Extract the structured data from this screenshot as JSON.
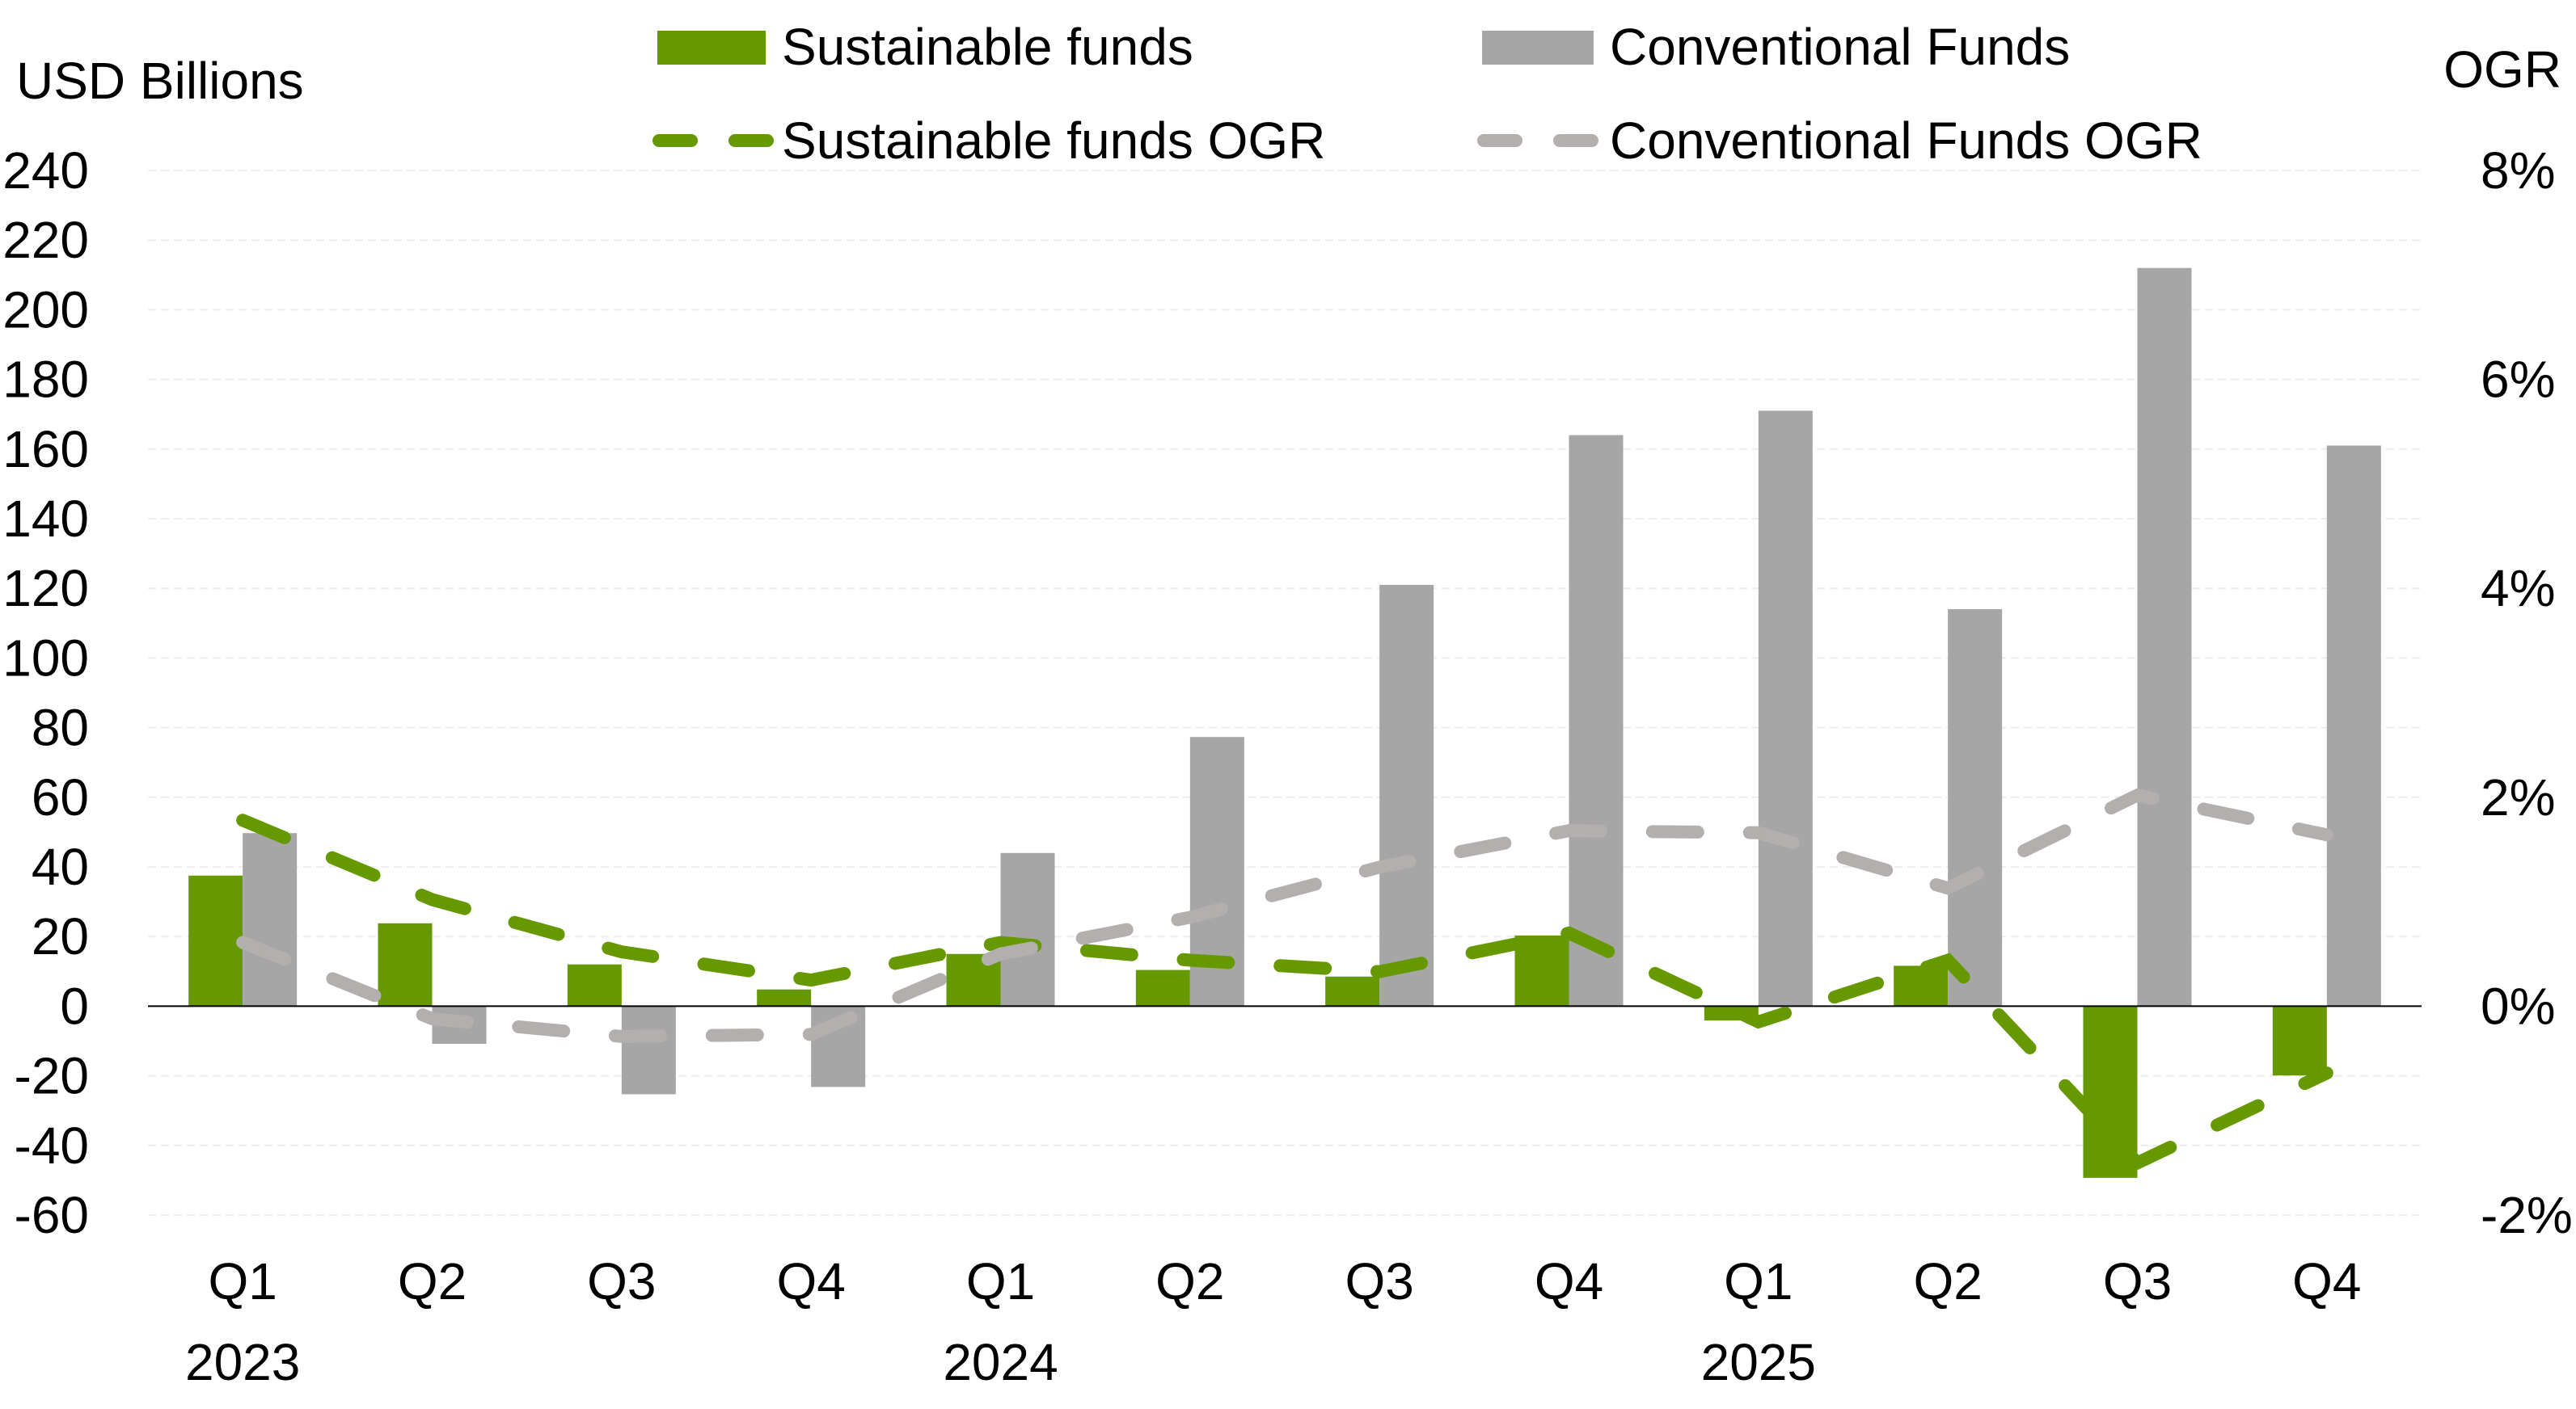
{
  "chart_data": {
    "type": "bar",
    "title": "",
    "ylabel": "USD Billions",
    "y2label": "OGR",
    "categories": [
      "Q1",
      "Q2",
      "Q3",
      "Q4",
      "Q1",
      "Q2",
      "Q3",
      "Q4",
      "Q1",
      "Q2",
      "Q3",
      "Q4"
    ],
    "year_labels": [
      {
        "index": 0,
        "label": "2023"
      },
      {
        "index": 4,
        "label": "2024"
      },
      {
        "index": 8,
        "label": "2025"
      }
    ],
    "ylim": [
      -60,
      240
    ],
    "yticks": [
      -60,
      -40,
      -20,
      0,
      20,
      40,
      60,
      80,
      100,
      120,
      140,
      160,
      180,
      200,
      220,
      240
    ],
    "y2lim": [
      -2,
      8
    ],
    "y2ticks": [
      "-2%",
      "0%",
      "2%",
      "4%",
      "6%",
      "8%"
    ],
    "y2tick_values": [
      -2,
      0,
      2,
      4,
      6,
      8
    ],
    "grid": true,
    "legend_position": "top",
    "series": [
      {
        "name": "Sustainable funds",
        "kind": "bar",
        "axis": "left",
        "color": "#669900",
        "values": [
          37.5,
          23.8,
          12,
          4.8,
          15,
          10.4,
          8.5,
          20.3,
          -4.1,
          11.6,
          -49.3,
          -19.9
        ]
      },
      {
        "name": "Conventional Funds",
        "kind": "bar",
        "axis": "left",
        "color": "#a6a6a6",
        "values": [
          49.7,
          -10.8,
          -25.3,
          -23.2,
          44,
          77.3,
          121,
          164,
          171,
          114,
          212,
          161
        ]
      },
      {
        "name": "Sustainable funds OGR",
        "kind": "dashed-line",
        "axis": "right",
        "color": "#669900",
        "values": [
          1.78,
          1.02,
          0.52,
          0.25,
          0.61,
          0.44,
          0.33,
          0.7,
          -0.15,
          0.44,
          -1.5,
          -0.64
        ]
      },
      {
        "name": "Conventional Funds OGR",
        "kind": "dashed-line",
        "axis": "right",
        "color": "#b3afae",
        "values": [
          0.61,
          -0.12,
          -0.29,
          -0.27,
          0.5,
          0.85,
          1.33,
          1.68,
          1.66,
          1.13,
          2.02,
          1.64
        ]
      }
    ]
  }
}
